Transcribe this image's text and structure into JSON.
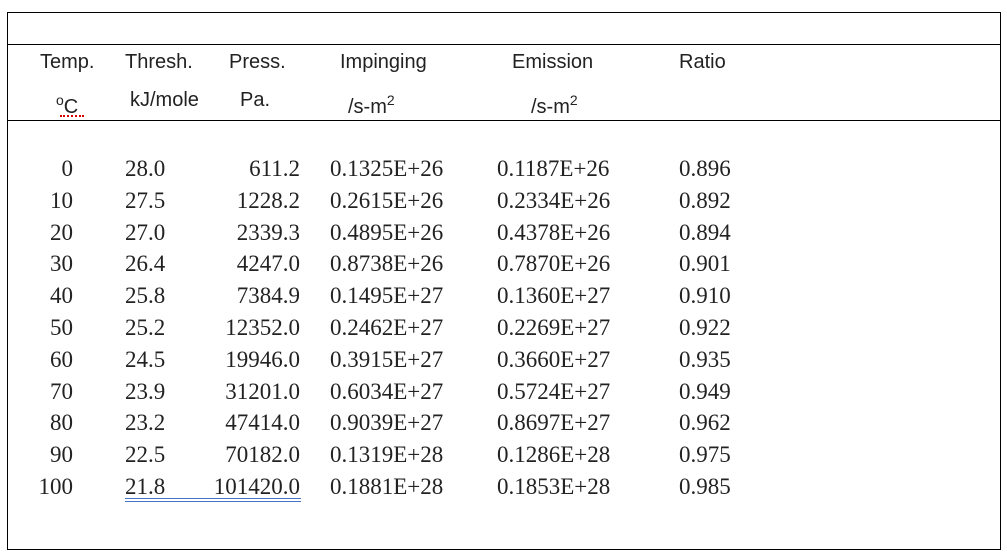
{
  "table": {
    "header": [
      "Temp.",
      "Thresh.",
      "Press.",
      "Impinging",
      "Emission",
      "Ratio"
    ],
    "units": [
      {
        "pre": "o",
        "base": "C"
      },
      {
        "base": "kJ/mole"
      },
      {
        "base": "Pa."
      },
      {
        "base": "/s-m",
        "sup": "2"
      },
      {
        "base": "/s-m",
        "sup": "2"
      }
    ],
    "rows": [
      [
        "0",
        "28.0",
        "611.2",
        "0.1325E+26",
        "0.1187E+26",
        "0.896"
      ],
      [
        "10",
        "27.5",
        "1228.2",
        "0.2615E+26",
        "0.2334E+26",
        "0.892"
      ],
      [
        "20",
        "27.0",
        "2339.3",
        "0.4895E+26",
        "0.4378E+26",
        "0.894"
      ],
      [
        "30",
        "26.4",
        "4247.0",
        "0.8738E+26",
        "0.7870E+26",
        "0.901"
      ],
      [
        "40",
        "25.8",
        "7384.9",
        "0.1495E+27",
        "0.1360E+27",
        "0.910"
      ],
      [
        "50",
        "25.2",
        "12352.0",
        "0.2462E+27",
        "0.2269E+27",
        "0.922"
      ],
      [
        "60",
        "24.5",
        "19946.0",
        "0.3915E+27",
        "0.3660E+27",
        "0.935"
      ],
      [
        "70",
        "23.9",
        "31201.0",
        "0.6034E+27",
        "0.5724E+27",
        "0.949"
      ],
      [
        "80",
        "23.2",
        "47414.0",
        "0.9039E+27",
        "0.8697E+27",
        "0.962"
      ],
      [
        "90",
        "22.5",
        "70182.0",
        "0.1319E+28",
        "0.1286E+28",
        "0.975"
      ],
      [
        "100",
        "21.8",
        "101420.0",
        "0.1881E+28",
        "0.1853E+28",
        "0.985"
      ]
    ]
  }
}
